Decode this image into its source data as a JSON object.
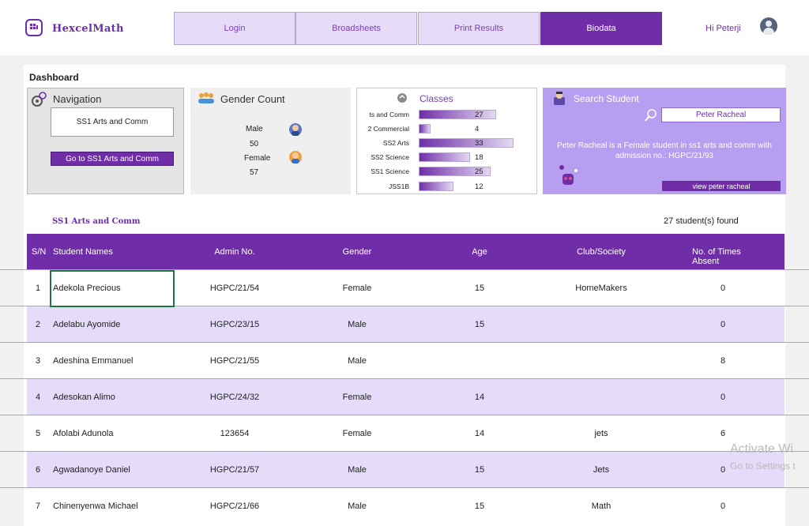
{
  "app": {
    "name": "HexcelMath",
    "greeting": "Hi Peterji"
  },
  "nav": [
    "Login",
    "Broadsheets",
    "Print Results",
    "Biodata"
  ],
  "dashboard_label": "Dashboard",
  "navigation_card": {
    "title": "Navigation",
    "selected": "SS1 Arts and Comm",
    "go_button": "Go to SS1 Arts and Comm"
  },
  "gender_card": {
    "title": "Gender Count",
    "male_label": "Male",
    "male_count": "50",
    "female_label": "Female",
    "female_count": "57"
  },
  "classes_card": {
    "title": "Classes",
    "max": 33,
    "items": [
      {
        "name": "ts and Comm",
        "count": 27
      },
      {
        "name": "2 Commercial",
        "count": 4
      },
      {
        "name": "SS2 Arts",
        "count": 33
      },
      {
        "name": "SS2 Science",
        "count": 18
      },
      {
        "name": "SS1 Science",
        "count": 25
      },
      {
        "name": "JSS1B",
        "count": 12
      }
    ]
  },
  "search_card": {
    "title": "Search Student",
    "query": "Peter Racheal",
    "result": "Peter Racheal is a Female student in ss1 arts and comm with admission no.: HGPC/21/93",
    "view_button": "view peter racheal"
  },
  "list": {
    "title": "SS1 Arts and Comm",
    "found": "27  student(s) found"
  },
  "table": {
    "headers": [
      "S/N",
      "Student Names",
      "Admin No.",
      "Gender",
      "Age",
      "Club/Society",
      "No. of Times Absent"
    ],
    "rows": [
      [
        "1",
        "Adekola Precious",
        "HGPC/21/54",
        "Female",
        "15",
        "HomeMakers",
        "0"
      ],
      [
        "2",
        "Adelabu Ayomide",
        "HGPC/23/15",
        "Male",
        "15",
        "",
        "0"
      ],
      [
        "3",
        "Adeshina Emmanuel",
        "HGPC/21/55",
        "Male",
        "",
        "",
        "8"
      ],
      [
        "4",
        "Adesokan Alimo",
        "HGPC/24/32",
        "Female",
        "14",
        "",
        "0"
      ],
      [
        "5",
        "Afolabi Adunola",
        "123654",
        "Female",
        "14",
        "jets",
        "6"
      ],
      [
        "6",
        "Agwadanoye Daniel",
        "HGPC/21/57",
        "Male",
        "15",
        "Jets",
        "0"
      ],
      [
        "7",
        "Chinenyenwa Michael",
        "HGPC/21/66",
        "Male",
        "15",
        "Math",
        "0"
      ]
    ]
  },
  "watermark": {
    "line1": "Activate Wi",
    "line2": "Go to Settings t"
  },
  "colors": {
    "accent": "#6f2da8",
    "accent_light": "#e4dcf8",
    "search_bg": "#b79ef0"
  }
}
